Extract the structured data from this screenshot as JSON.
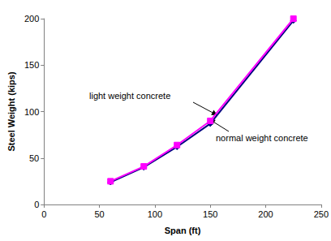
{
  "chart_data": {
    "type": "line",
    "x_label": "Span (ft)",
    "y_label": "Steel Weight (kips)",
    "xlim": [
      0,
      250
    ],
    "xticks": [
      0,
      50,
      100,
      150,
      200,
      250
    ],
    "ylim": [
      0,
      200
    ],
    "yticks": [
      0,
      50,
      100,
      150,
      200
    ],
    "grid": false,
    "series": [
      {
        "name": "light weight concrete",
        "color": "#000080",
        "marker": "diamond",
        "x": [
          60,
          90,
          120,
          150,
          225
        ],
        "values": [
          24,
          40,
          62,
          87,
          198
        ]
      },
      {
        "name": "normal weight concrete",
        "color": "#ff00ff",
        "marker": "square",
        "x": [
          60,
          90,
          120,
          150,
          225
        ],
        "values": [
          25,
          41,
          64,
          90,
          200
        ]
      }
    ],
    "annotations": [
      "light weight concrete",
      "normal weight concrete"
    ]
  }
}
